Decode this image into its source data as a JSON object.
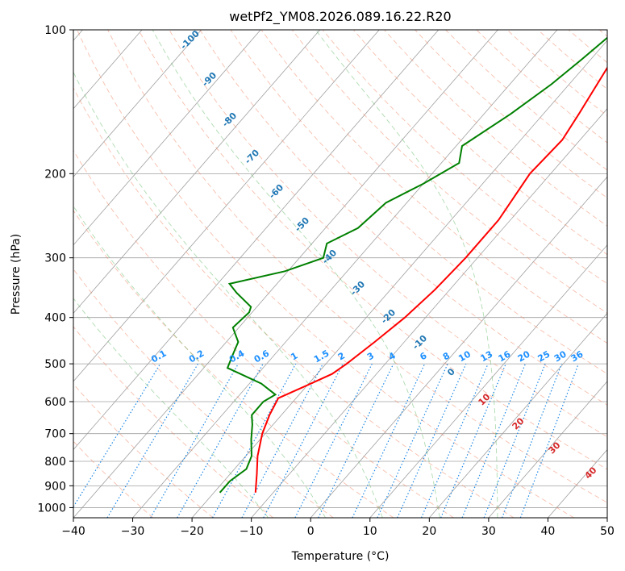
{
  "chart_data": {
    "type": "line",
    "title": "wetPf2_YM08.2026.089.16.22.R20",
    "xlabel": "Temperature (°C)",
    "ylabel": "Pressure (hPa)",
    "xlim": [
      -40,
      50
    ],
    "ylim": [
      1050,
      100
    ],
    "y_scale": "log",
    "grid": true,
    "x_ticks": [
      -40,
      -30,
      -20,
      -10,
      0,
      10,
      20,
      30,
      40,
      50
    ],
    "y_ticks": [
      100,
      200,
      300,
      400,
      500,
      600,
      700,
      800,
      900,
      1000
    ],
    "skew_x": true,
    "series": [
      {
        "color": "#ff0000",
        "points": [
          [
            -13.0,
            930
          ],
          [
            -15.5,
            850
          ],
          [
            -18.0,
            780
          ],
          [
            -20.5,
            700
          ],
          [
            -22.0,
            640
          ],
          [
            -23.0,
            590
          ],
          [
            -20.5,
            560
          ],
          [
            -17.5,
            525
          ],
          [
            -16.5,
            500
          ],
          [
            -15.0,
            450
          ],
          [
            -13.5,
            400
          ],
          [
            -12.5,
            350
          ],
          [
            -12.0,
            300
          ],
          [
            -12.0,
            250
          ],
          [
            -13.5,
            200
          ],
          [
            -13.0,
            170
          ],
          [
            -14.0,
            150
          ],
          [
            -16.0,
            120
          ],
          [
            -17.5,
            100
          ]
        ]
      },
      {
        "color": "#008000",
        "points": [
          [
            -19.0,
            930
          ],
          [
            -19.0,
            880
          ],
          [
            -18.0,
            830
          ],
          [
            -19.0,
            780
          ],
          [
            -21.5,
            720
          ],
          [
            -23.5,
            670
          ],
          [
            -25.0,
            640
          ],
          [
            -25.0,
            600
          ],
          [
            -24.0,
            580
          ],
          [
            -28.0,
            550
          ],
          [
            -36.0,
            510
          ],
          [
            -37.0,
            480
          ],
          [
            -38.0,
            450
          ],
          [
            -41.0,
            420
          ],
          [
            -40.5,
            390
          ],
          [
            -41.0,
            380
          ],
          [
            -45.5,
            355
          ],
          [
            -48.0,
            340
          ],
          [
            -40.5,
            320
          ],
          [
            -36.0,
            300
          ],
          [
            -37.5,
            280
          ],
          [
            -34.5,
            260
          ],
          [
            -33.5,
            230
          ],
          [
            -30.0,
            210
          ],
          [
            -27.0,
            190
          ],
          [
            -29.0,
            175
          ],
          [
            -25.5,
            150
          ],
          [
            -23.0,
            130
          ],
          [
            -21.5,
            115
          ],
          [
            -20.0,
            100
          ]
        ]
      }
    ],
    "dry_adiabat_labels": [
      "-100",
      "-90",
      "-80",
      "-70",
      "-60",
      "-50",
      "-40",
      "-30",
      "-20",
      "-10",
      "0"
    ],
    "mixing_ratio_labels": [
      "0.1",
      "0.2",
      "0.4",
      "0.6",
      "1",
      "1.5",
      "2",
      "3",
      "4",
      "6",
      "8",
      "10",
      "13",
      "16",
      "20",
      "25",
      "30",
      "36"
    ],
    "moist_adiabat_labels": [
      "10",
      "20",
      "30",
      "40"
    ]
  },
  "colors": {
    "temperature": "#ff0000",
    "dewpoint": "#008000",
    "isotherm": "#a0a0a0",
    "dry_adiabat": "#f08a6a",
    "moist_adiabat": "#4caf50",
    "mixing_ratio": "#1e88e5"
  }
}
